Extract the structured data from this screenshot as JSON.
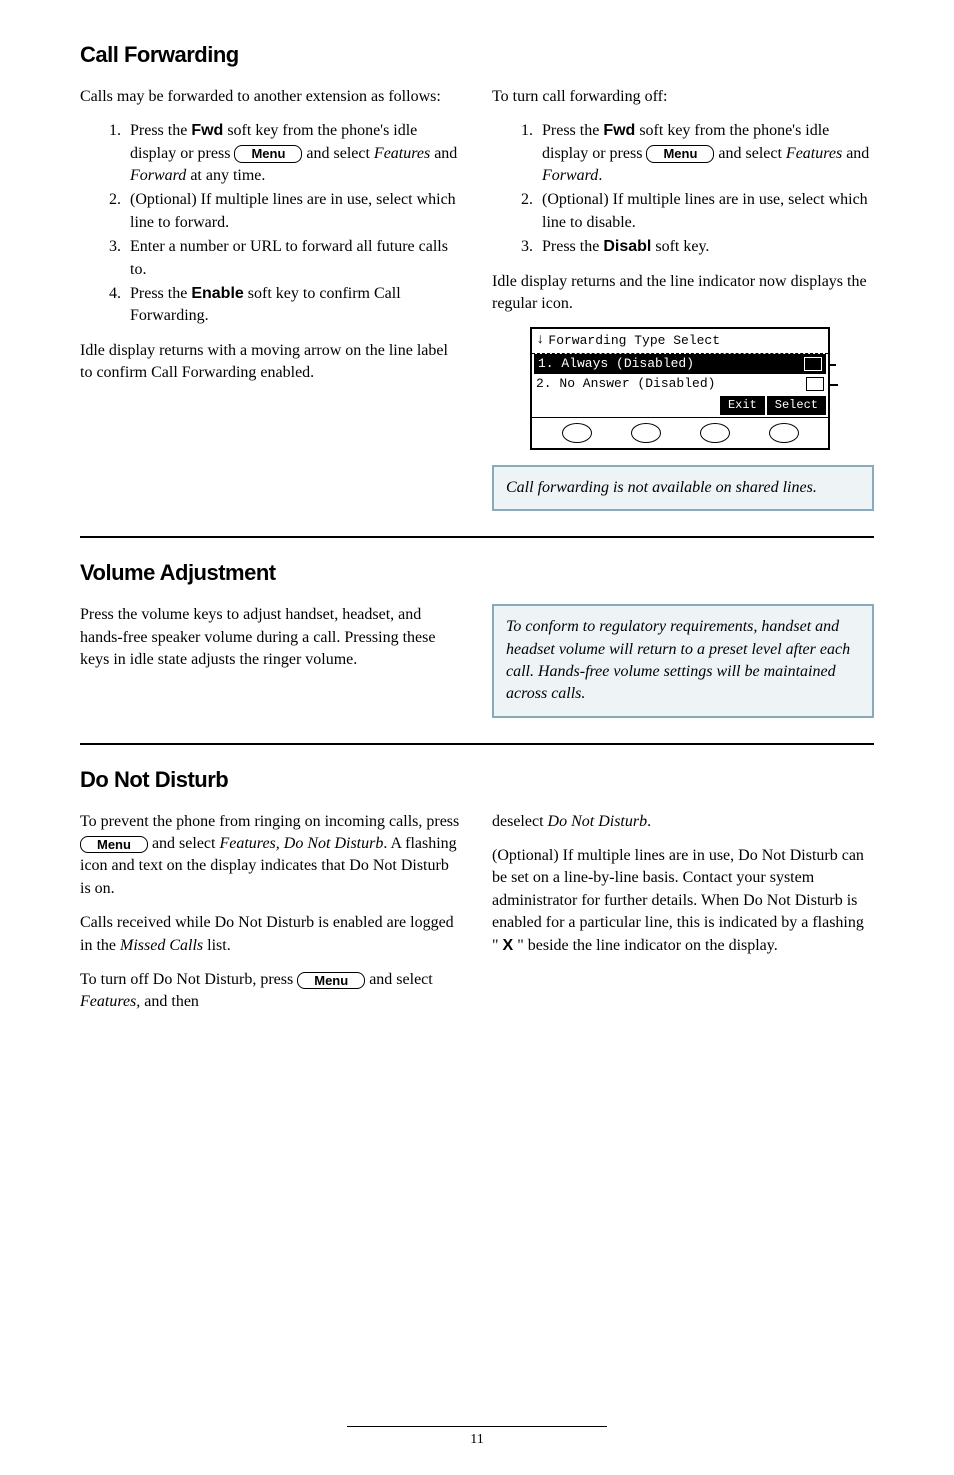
{
  "section1": {
    "heading": "Call Forwarding",
    "left": {
      "intro": "Calls may be forwarded to another extension as follows:",
      "steps": [
        {
          "pre": "Press the ",
          "bold": "Fwd",
          "post": " soft key from the phone's idle display or press ",
          "menu": true,
          "post2": " and select ",
          "italic": "Features",
          "post3": " and ",
          "italic2": "Forward",
          "post4": " at any time."
        },
        {
          "text": "(Optional) If multiple lines are in use, select which line to forward."
        },
        {
          "text": "Enter a number or URL to forward all future calls to."
        },
        {
          "pre": "Press the ",
          "bold": "Enable",
          "post": " soft key to confirm Call Forwarding."
        }
      ],
      "outro": "Idle display returns with a moving arrow on the line label to confirm Call Forwarding enabled."
    },
    "right": {
      "intro": "To turn call forwarding off:",
      "steps": [
        {
          "pre": "Press the ",
          "bold": "Fwd",
          "post": " soft key from the phone's idle display or press ",
          "menu": true,
          "post2": " and select ",
          "italic": "Features",
          "post3": " and ",
          "italic2": "Forward",
          "post4": "."
        },
        {
          "text": "(Optional) If multiple lines are in use, select which line to disable."
        },
        {
          "pre": "Press the ",
          "bold": "Disabl",
          "post": " soft key."
        }
      ],
      "outro": "Idle display returns and the line indicator now displays the regular icon.",
      "lcd": {
        "title": "Forwarding Type Select",
        "row1": "1. Always (Disabled)",
        "row2": "2. No Answer (Disabled)",
        "sk1": "Exit",
        "sk2": "Select"
      },
      "note": "Call forwarding is not available on shared lines."
    }
  },
  "section2": {
    "heading": "Volume Adjustment",
    "left": "Press the volume keys to adjust handset, headset, and hands-free speaker volume during a call.  Pressing these keys in idle state adjusts the ringer volume.",
    "note": "To conform to regulatory requirements, handset and headset volume will return to a preset level after each call.  Hands-free volume settings will be maintained across calls."
  },
  "section3": {
    "heading": "Do Not Disturb",
    "left": {
      "p1_pre": "To prevent the phone from ringing on incoming calls, press ",
      "p1_post": " and select ",
      "p1_italic": "Features, Do Not Disturb",
      "p1_end": ".  A flashing icon and text on the display indicates that Do Not Disturb is on.",
      "p2_pre": "Calls received while Do Not Disturb is enabled are logged in the ",
      "p2_italic": "Missed Calls",
      "p2_end": " list.",
      "p3_pre": "To turn off Do Not Disturb, press ",
      "p3_post": " and select ",
      "p3_italic": "Features,",
      "p3_end": " and then"
    },
    "right": {
      "p1_pre": "deselect ",
      "p1_italic": "Do Not Disturb",
      "p1_end": ".",
      "p2_pre": "(Optional) If multiple lines are in use, Do Not Disturb can be set on a line-by-line basis.  Contact your system administrator for further details.  When Do Not Disturb is enabled for a particular line, this is indicated by a flashing \" ",
      "p2_x": "X",
      "p2_end": " \" beside the line indicator on the display."
    }
  },
  "menu_label": "Menu",
  "page_number": "11"
}
